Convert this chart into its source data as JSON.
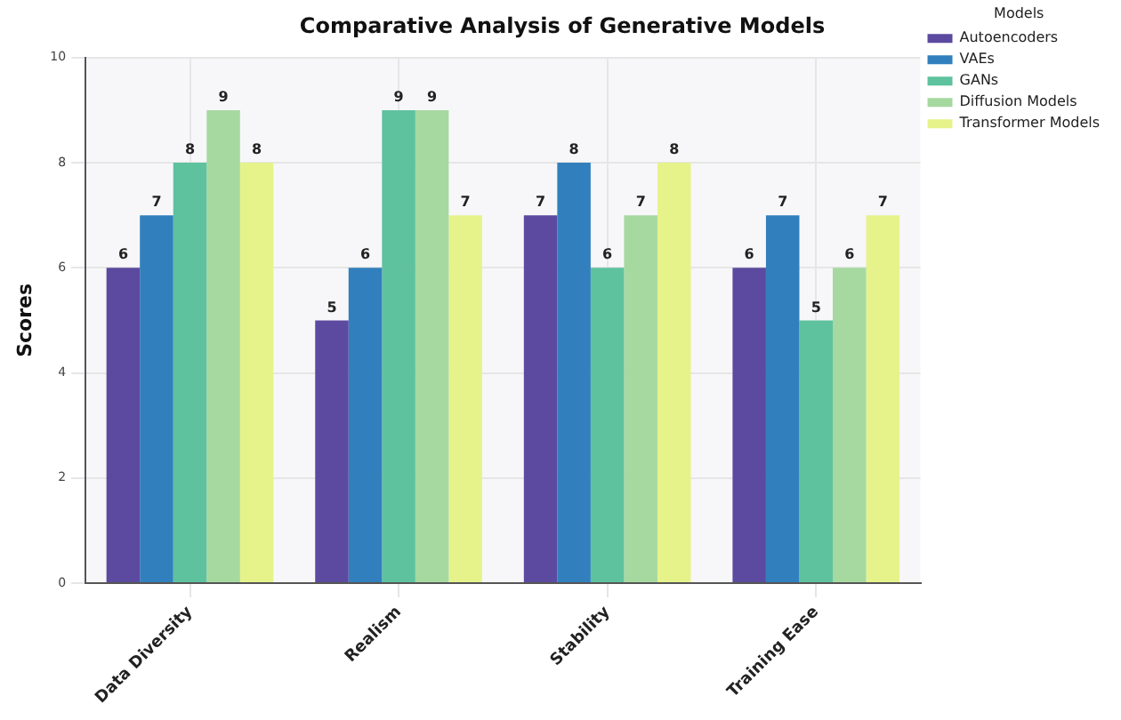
{
  "chart_data": {
    "type": "bar",
    "title": "Comparative Analysis of Generative Models",
    "ylabel": "Scores",
    "legend_title": "Models",
    "categories": [
      "Data Diversity",
      "Realism",
      "Stability",
      "Training Ease"
    ],
    "series": [
      {
        "name": "Autoencoders",
        "color": "#5b4a9f",
        "values": [
          6,
          5,
          7,
          6
        ]
      },
      {
        "name": "VAEs",
        "color": "#3180bd",
        "values": [
          7,
          6,
          8,
          7
        ]
      },
      {
        "name": "GANs",
        "color": "#5ec29e",
        "values": [
          8,
          9,
          6,
          5
        ]
      },
      {
        "name": "Diffusion Models",
        "color": "#a6d9a0",
        "values": [
          9,
          9,
          7,
          6
        ]
      },
      {
        "name": "Transformer Models",
        "color": "#e6f38b",
        "values": [
          8,
          7,
          8,
          7
        ]
      }
    ],
    "ylim": [
      0,
      10
    ],
    "yticks": [
      0,
      2,
      4,
      6,
      8,
      10
    ],
    "grid": true,
    "legend": "top right",
    "data_labels": true
  }
}
